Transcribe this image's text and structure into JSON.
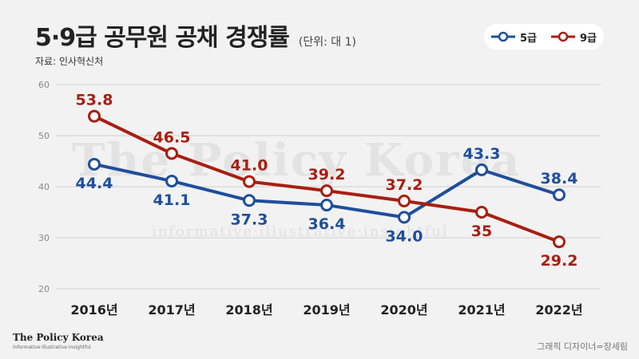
{
  "header": {
    "title": "5·9급 공무원 공채 경쟁률",
    "unit": "(단위: 대 1)",
    "source": "자료: 인사혁신처"
  },
  "watermark": {
    "main": "The Policy Korea",
    "sub": "informative·illustrative·insightful"
  },
  "footer": {
    "logo": "The Policy Korea",
    "logo_sub": "informative·illustrative·insightful",
    "credit": "그래픽 디자이너=장세림"
  },
  "colors": {
    "grade5": "#1f4e9c",
    "grade9": "#a81f12",
    "grid": "#d0d0d0",
    "axis_tick": "#888888"
  },
  "chart_data": {
    "type": "line",
    "categories": [
      "2016년",
      "2017년",
      "2018년",
      "2019년",
      "2020년",
      "2021년",
      "2022년"
    ],
    "ylim": [
      20,
      60
    ],
    "yticks": [
      20,
      30,
      40,
      50,
      60
    ],
    "grid": true,
    "legend": "top-right",
    "series": [
      {
        "name": "5급",
        "color": "#1f4e9c",
        "values": [
          44.4,
          41.1,
          37.3,
          36.4,
          34.0,
          43.3,
          38.4
        ],
        "labels": [
          "44.4",
          "41.1",
          "37.3",
          "36.4",
          "34.0",
          "43.3",
          "38.4"
        ]
      },
      {
        "name": "9급",
        "color": "#a81f12",
        "values": [
          53.8,
          46.5,
          41.0,
          39.2,
          37.2,
          35,
          29.2
        ],
        "labels": [
          "53.8",
          "46.5",
          "41.0",
          "39.2",
          "37.2",
          "35",
          "29.2"
        ]
      }
    ]
  }
}
